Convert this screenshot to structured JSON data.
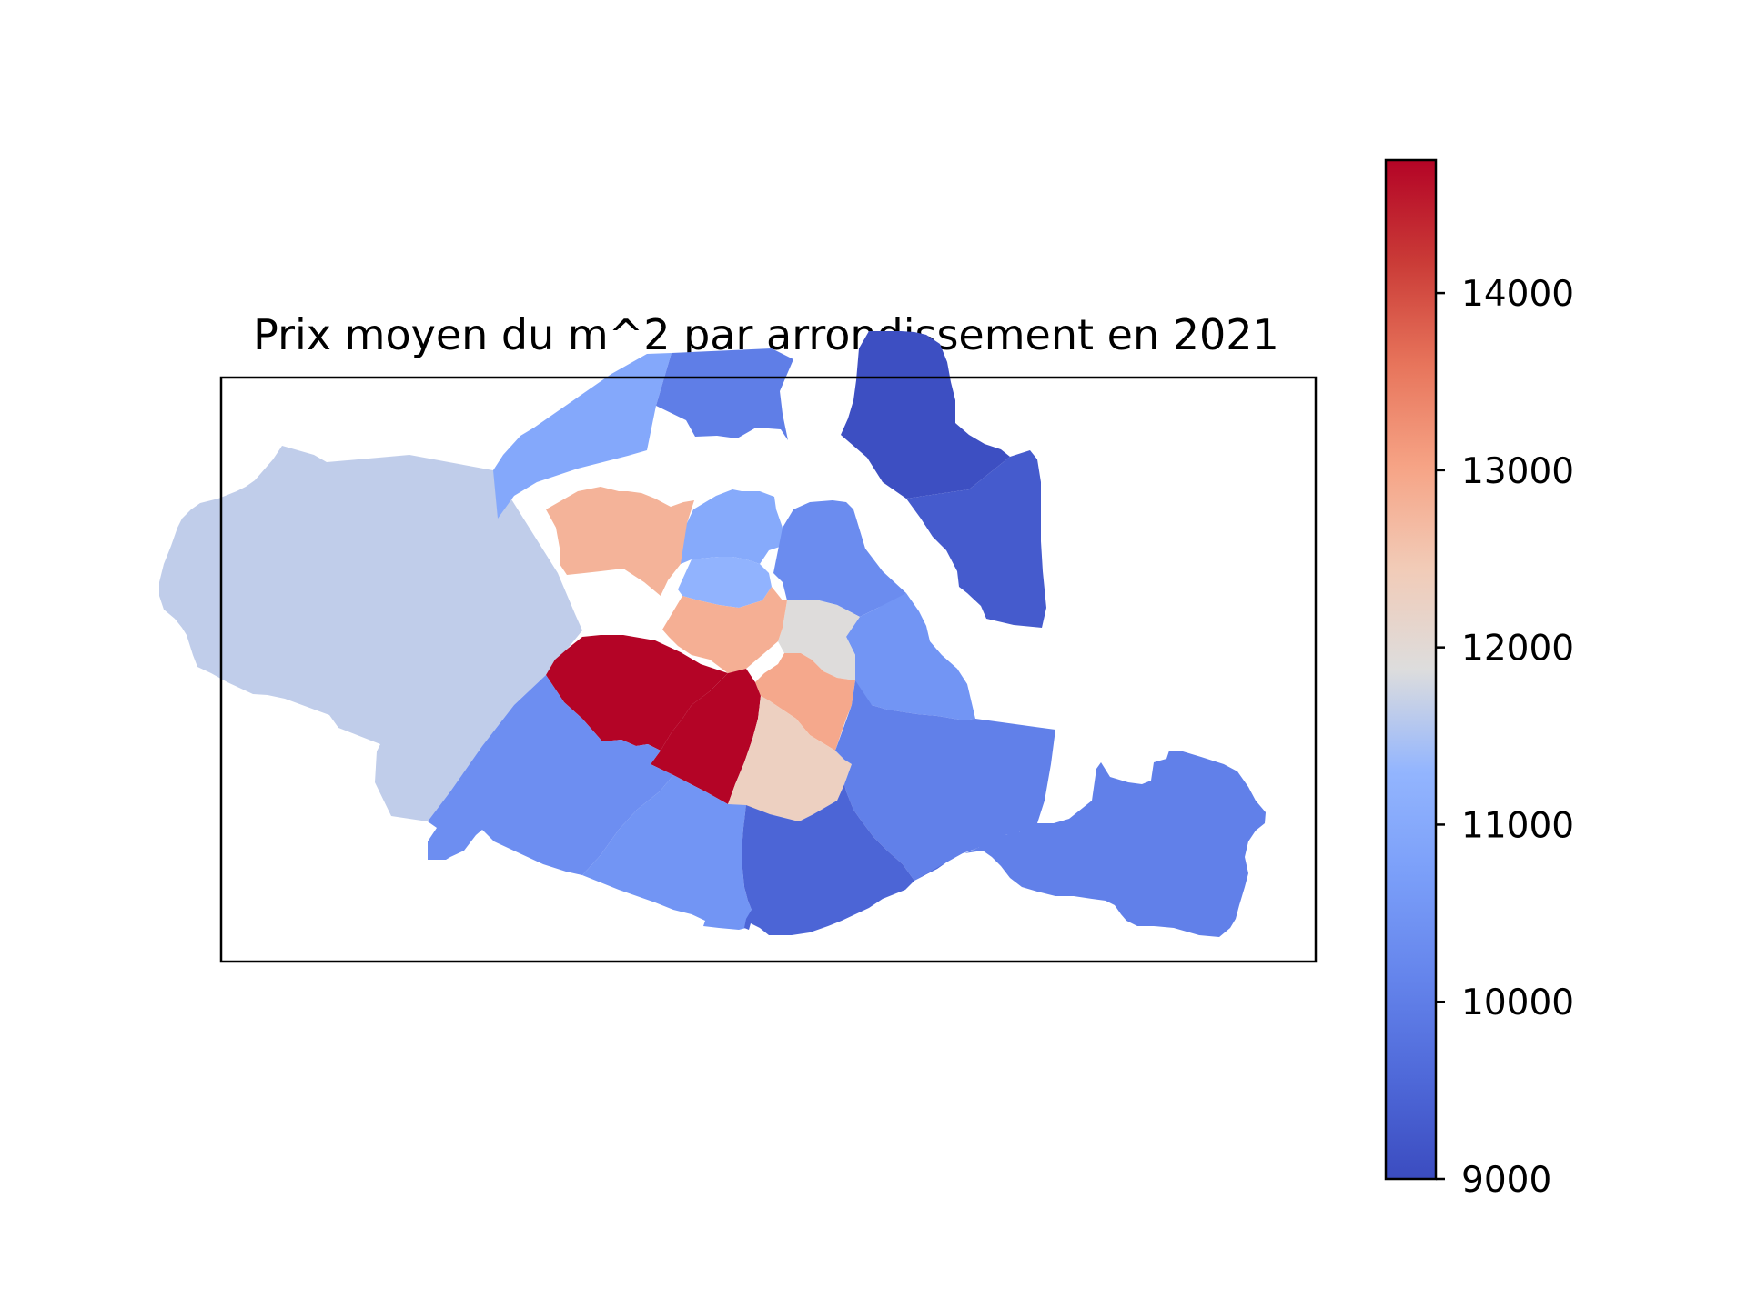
{
  "chart_data": {
    "type": "choropleth",
    "title": "Prix moyen du m^2 par arrondissement en 2021",
    "colormap": "coolwarm",
    "colorbar": {
      "vmin": 9000,
      "vmax": 14750,
      "ticks": [
        9000,
        10000,
        11000,
        12000,
        13000,
        14000
      ],
      "tick_labels": [
        "9000",
        "10000",
        "11000",
        "12000",
        "13000",
        "14000"
      ]
    },
    "regions": [
      {
        "id": "arr-1",
        "value": 12850
      },
      {
        "id": "arr-2",
        "value": 11250
      },
      {
        "id": "arr-3",
        "value": 11900
      },
      {
        "id": "arr-4",
        "value": 12950
      },
      {
        "id": "arr-5",
        "value": 12300
      },
      {
        "id": "arr-6",
        "value": 14750
      },
      {
        "id": "arr-7",
        "value": 14750
      },
      {
        "id": "arr-8",
        "value": 12800
      },
      {
        "id": "arr-9",
        "value": 11000
      },
      {
        "id": "arr-10",
        "value": 10300
      },
      {
        "id": "arr-11",
        "value": 10500
      },
      {
        "id": "arr-12",
        "value": 10050
      },
      {
        "id": "arr-13",
        "value": 9500
      },
      {
        "id": "arr-14",
        "value": 10500
      },
      {
        "id": "arr-15",
        "value": 10350
      },
      {
        "id": "arr-16",
        "value": 11650
      },
      {
        "id": "arr-17",
        "value": 10950
      },
      {
        "id": "arr-18",
        "value": 10000
      },
      {
        "id": "arr-19",
        "value": 9050
      },
      {
        "id": "arr-20",
        "value": 9300
      }
    ]
  }
}
